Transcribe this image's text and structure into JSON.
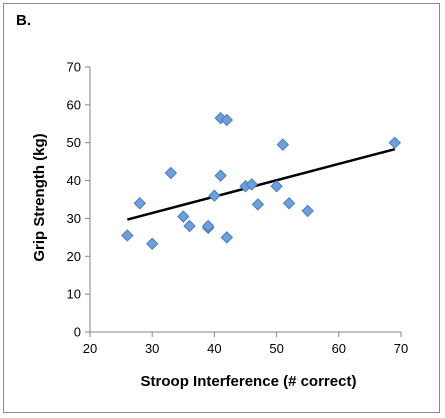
{
  "panel_label": "B.",
  "chart_data": {
    "type": "scatter",
    "title": "",
    "xlabel": "Stroop Interference (# correct)",
    "ylabel": "Grip Strength (kg)",
    "xlim": [
      20,
      70
    ],
    "ylim": [
      0,
      70
    ],
    "xticks": [
      20,
      30,
      40,
      50,
      60,
      70
    ],
    "yticks": [
      0,
      10,
      20,
      30,
      40,
      50,
      60,
      70
    ],
    "grid": false,
    "marker": "diamond",
    "marker_color": "#6f9fd8",
    "marker_edge_color": "#4a7ebb",
    "points": [
      {
        "x": 26,
        "y": 25.5
      },
      {
        "x": 28,
        "y": 34
      },
      {
        "x": 30,
        "y": 23.3
      },
      {
        "x": 33,
        "y": 42
      },
      {
        "x": 35,
        "y": 30.5
      },
      {
        "x": 36,
        "y": 28
      },
      {
        "x": 39,
        "y": 27.5
      },
      {
        "x": 39,
        "y": 28
      },
      {
        "x": 40,
        "y": 36
      },
      {
        "x": 41,
        "y": 56.5
      },
      {
        "x": 41,
        "y": 41.3
      },
      {
        "x": 42,
        "y": 56
      },
      {
        "x": 42,
        "y": 25
      },
      {
        "x": 45,
        "y": 38.5
      },
      {
        "x": 46,
        "y": 39
      },
      {
        "x": 47,
        "y": 33.7
      },
      {
        "x": 50,
        "y": 38.5
      },
      {
        "x": 51,
        "y": 49.5
      },
      {
        "x": 52,
        "y": 34
      },
      {
        "x": 55,
        "y": 32
      },
      {
        "x": 69,
        "y": 50
      }
    ],
    "trendline": {
      "x": [
        26,
        69
      ],
      "y": [
        29.7,
        48.3
      ],
      "color": "#000000"
    }
  }
}
